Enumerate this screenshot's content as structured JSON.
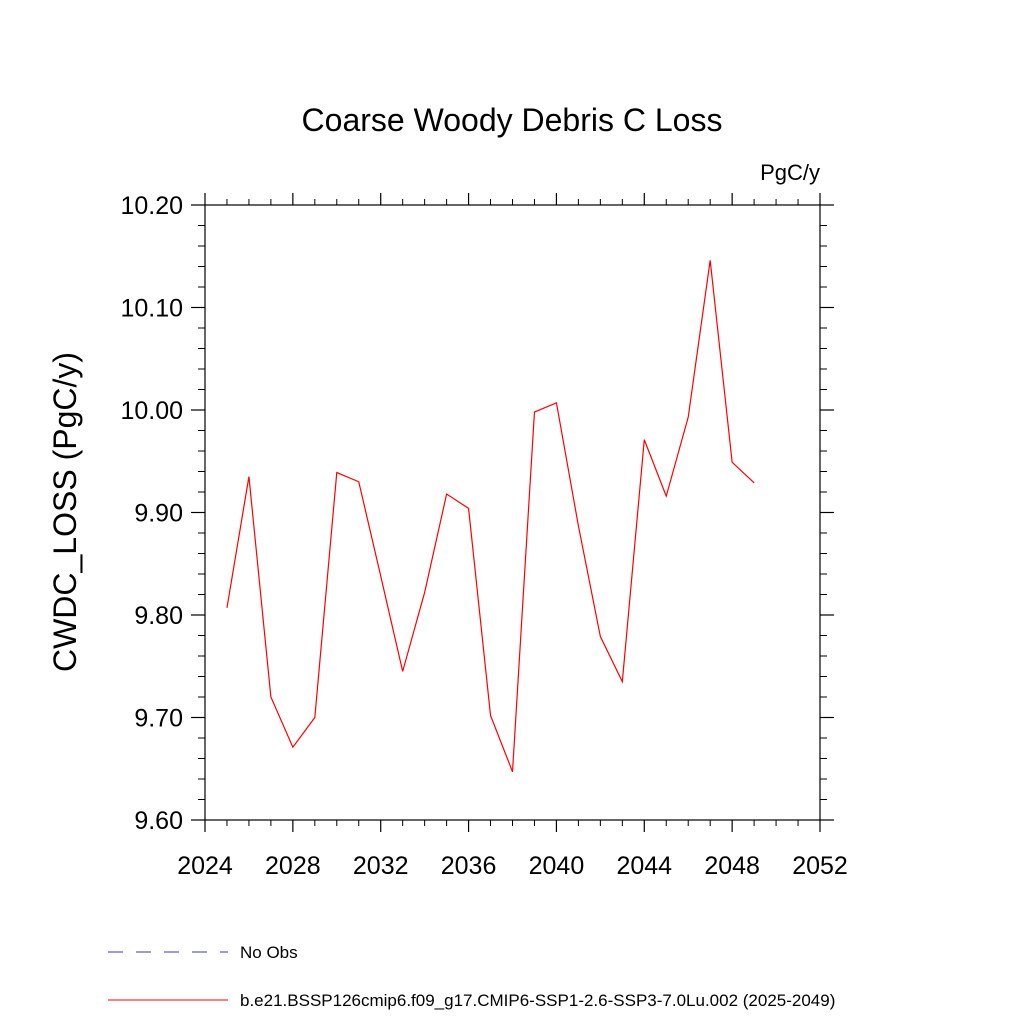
{
  "chart_data": {
    "type": "line",
    "title": "Coarse Woody Debris C Loss",
    "units": "PgC/y",
    "ylabel": "CWDC_LOSS  (PgC/y)",
    "xlabel": "",
    "xlim": [
      2024,
      2052
    ],
    "ylim": [
      9.6,
      10.2
    ],
    "x_ticks": [
      "2024",
      "2028",
      "2032",
      "2036",
      "2040",
      "2044",
      "2048",
      "2052"
    ],
    "y_ticks": [
      "9.60",
      "9.70",
      "9.80",
      "9.90",
      "10.00",
      "10.10",
      "10.20"
    ],
    "grid": false,
    "legend_placement": "bottom",
    "series": [
      {
        "name": "b.e21.BSSP126cmip6.f09_g17.CMIP6-SSP1-2.6-SSP3-7.0Lu.002 (2025-2049)",
        "color": "#ff0000",
        "style": "solid",
        "x": [
          2025,
          2026,
          2027,
          2028,
          2029,
          2030,
          2031,
          2032,
          2033,
          2034,
          2035,
          2036,
          2037,
          2038,
          2039,
          2040,
          2041,
          2042,
          2043,
          2044,
          2045,
          2046,
          2047,
          2048,
          2049
        ],
        "values": [
          9.807,
          9.935,
          9.72,
          9.671,
          9.7,
          9.939,
          9.93,
          9.838,
          9.745,
          9.822,
          9.918,
          9.904,
          9.702,
          9.647,
          9.998,
          10.007,
          9.887,
          9.779,
          9.735,
          9.971,
          9.916,
          9.993,
          10.146,
          9.949,
          9.929
        ]
      }
    ],
    "legend": [
      {
        "name": "No Obs",
        "color": "#3c3c96",
        "style": "dashed"
      },
      {
        "name": "b.e21.BSSP126cmip6.f09_g17.CMIP6-SSP1-2.6-SSP3-7.0Lu.002 (2025-2049)",
        "color": "#ff0000",
        "style": "solid"
      }
    ]
  }
}
